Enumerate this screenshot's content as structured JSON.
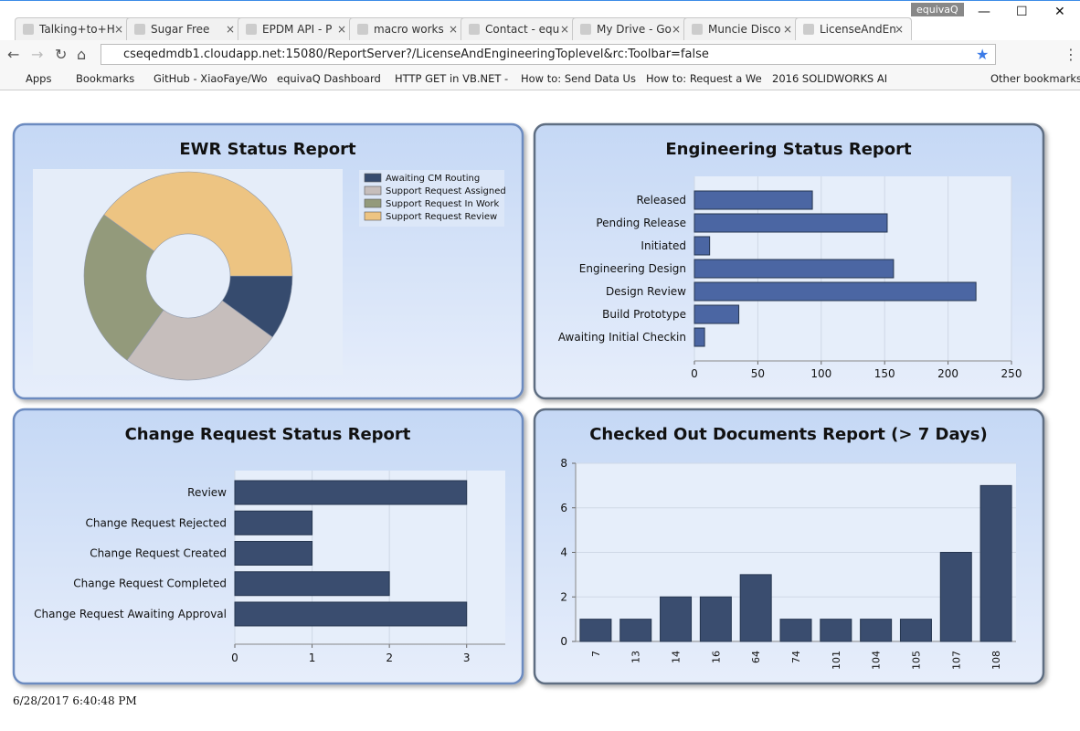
{
  "browser": {
    "tabs": [
      "Talking+to+H",
      "Sugar Free",
      "EPDM API - P",
      "macro works",
      "Contact - equ",
      "My Drive - Go",
      "Muncie Disco",
      "LicenseAndEn"
    ],
    "profile": "equivaQ",
    "url": "cseqedmdb1.cloudapp.net:15080/ReportServer?/LicenseAndEngineeringToplevel&rc:Toolbar=false",
    "bookmarks": [
      "Apps",
      "Bookmarks",
      "GitHub - XiaoFaye/Wo",
      "equivaQ Dashboard",
      "HTTP GET in VB.NET -",
      "How to: Send Data Us",
      "How to: Request a We",
      "2016 SOLIDWORKS AI"
    ],
    "other_bookmarks": "Other bookmarks"
  },
  "chart_data": [
    {
      "type": "pie",
      "title": "EWR Status Report",
      "donut": true,
      "categories": [
        "Awaiting CM Routing",
        "Support Request Assigned",
        "Support Request In Work",
        "Support Request Review"
      ],
      "values": [
        10,
        25,
        25,
        40
      ],
      "colors": [
        "#364b6e",
        "#c6bebc",
        "#939a7b",
        "#edc482"
      ]
    },
    {
      "type": "hbar",
      "title": "Engineering Status Report",
      "categories": [
        "Released",
        "Pending Release",
        "Initiated",
        "Engineering Design",
        "Design Review",
        "Build Prototype",
        "Awaiting Initial Checkin"
      ],
      "values": [
        93,
        152,
        12,
        157,
        222,
        35,
        8
      ],
      "color": "#4b66a3",
      "xlim": [
        0,
        250
      ],
      "xticks": [
        0,
        50,
        100,
        150,
        200,
        250
      ],
      "grid": true
    },
    {
      "type": "hbar",
      "title": "Change Request Status Report",
      "categories": [
        "Review",
        "Change Request Rejected",
        "Change Request Created",
        "Change Request Completed",
        "Change Request Awaiting Approval"
      ],
      "values": [
        3,
        1,
        1,
        2,
        3
      ],
      "color": "#3a4d6f",
      "xlim": [
        0,
        3.5
      ],
      "xticks": [
        0,
        1,
        2,
        3
      ],
      "grid": true
    },
    {
      "type": "bar",
      "title": "Checked Out Documents Report (> 7 Days)",
      "categories": [
        "7",
        "13",
        "14",
        "16",
        "64",
        "74",
        "101",
        "104",
        "105",
        "107",
        "108"
      ],
      "values": [
        1,
        1,
        2,
        2,
        3,
        1,
        1,
        1,
        1,
        4,
        7
      ],
      "color": "#3a4d6f",
      "ylim": [
        0,
        8
      ],
      "yticks": [
        0,
        2,
        4,
        6,
        8
      ],
      "grid": true
    }
  ],
  "timestamp": "6/28/2017 6:40:48 PM"
}
